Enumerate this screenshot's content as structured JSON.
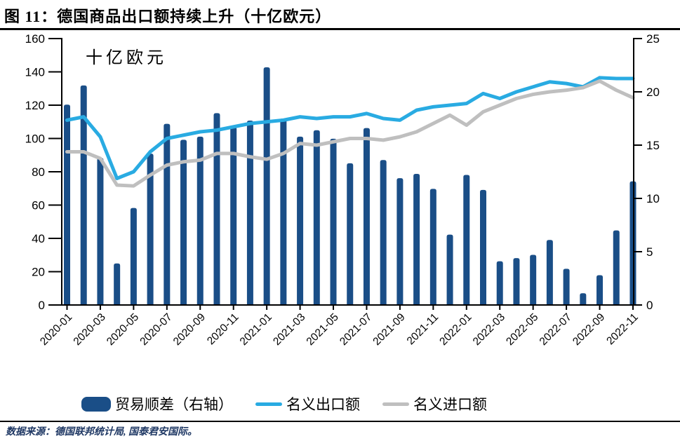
{
  "title": "图 11：德国商品出口额持续上升（十亿欧元）",
  "footer": {
    "source_text": "数据来源：德国联邦统计局, 国泰君安国际。"
  },
  "colors": {
    "bar": "#1A4E87",
    "exports_line": "#29ABE2",
    "imports_line": "#BFBFBF",
    "axis": "#000000",
    "footer_text": "#1F3864"
  },
  "chart_data": {
    "type": "bar",
    "subtype": "combo-bar-line",
    "title": "图 11：德国商品出口额持续上升（十亿欧元）",
    "unit_label": "十亿欧元",
    "grid": false,
    "legend_position": "bottom",
    "categories": [
      "2020-01",
      "2020-02",
      "2020-03",
      "2020-04",
      "2020-05",
      "2020-06",
      "2020-07",
      "2020-08",
      "2020-09",
      "2020-10",
      "2020-11",
      "2020-12",
      "2021-01",
      "2021-02",
      "2021-03",
      "2021-04",
      "2021-05",
      "2021-06",
      "2021-07",
      "2021-08",
      "2021-09",
      "2021-10",
      "2021-11",
      "2021-12",
      "2022-01",
      "2022-02",
      "2022-03",
      "2022-04",
      "2022-05",
      "2022-06",
      "2022-07",
      "2022-08",
      "2022-09",
      "2022-10",
      "2022-11"
    ],
    "x_tick_labels": [
      "2020-01",
      "2020-03",
      "2020-05",
      "2020-07",
      "2020-09",
      "2020-11",
      "2021-01",
      "2021-03",
      "2021-05",
      "2021-07",
      "2021-09",
      "2021-11",
      "2022-01",
      "2022-03",
      "2022-05",
      "2022-07",
      "2022-09",
      "2022-11"
    ],
    "left_axis": {
      "min": 0,
      "max": 160,
      "step": 20,
      "tick_labels": [
        "0",
        "20",
        "40",
        "60",
        "80",
        "100",
        "120",
        "140",
        "160"
      ]
    },
    "right_axis": {
      "min": 0,
      "max": 25,
      "step": 5,
      "tick_labels": [
        "0",
        "5",
        "10",
        "15",
        "20",
        "25"
      ]
    },
    "series": [
      {
        "name": "贸易顺差（右轴）",
        "type": "bar",
        "axis": "right",
        "color": "#1A4E87",
        "values": [
          18.8,
          20.6,
          13.8,
          3.9,
          9.1,
          14.2,
          17.0,
          15.5,
          15.8,
          18.0,
          16.7,
          17.3,
          22.3,
          17.5,
          15.8,
          16.4,
          15.6,
          13.3,
          16.6,
          13.6,
          11.9,
          12.3,
          10.9,
          6.6,
          12.2,
          10.8,
          4.1,
          4.4,
          4.7,
          6.1,
          3.4,
          1.1,
          2.8,
          7.0,
          11.6
        ]
      },
      {
        "name": "名义出口额",
        "type": "line",
        "axis": "left",
        "color": "#29ABE2",
        "values": [
          111,
          113,
          101,
          76,
          80,
          92,
          100,
          102,
          104,
          105,
          107,
          109,
          110,
          111,
          113,
          112,
          113,
          113,
          115,
          112,
          111,
          117,
          119,
          120,
          121,
          127,
          124,
          128,
          131,
          134,
          133,
          131,
          136.5,
          136,
          136
        ]
      },
      {
        "name": "名义进口额",
        "type": "line",
        "axis": "left",
        "color": "#BFBFBF",
        "values": [
          92,
          92,
          88,
          72,
          71.5,
          78,
          84,
          86,
          87,
          91,
          91,
          89,
          87.5,
          91,
          97,
          96,
          98,
          100,
          100,
          99,
          101,
          104,
          109,
          114,
          108,
          116,
          120,
          124,
          126.5,
          128,
          129,
          130.5,
          134.5,
          129,
          124.5
        ]
      }
    ]
  }
}
